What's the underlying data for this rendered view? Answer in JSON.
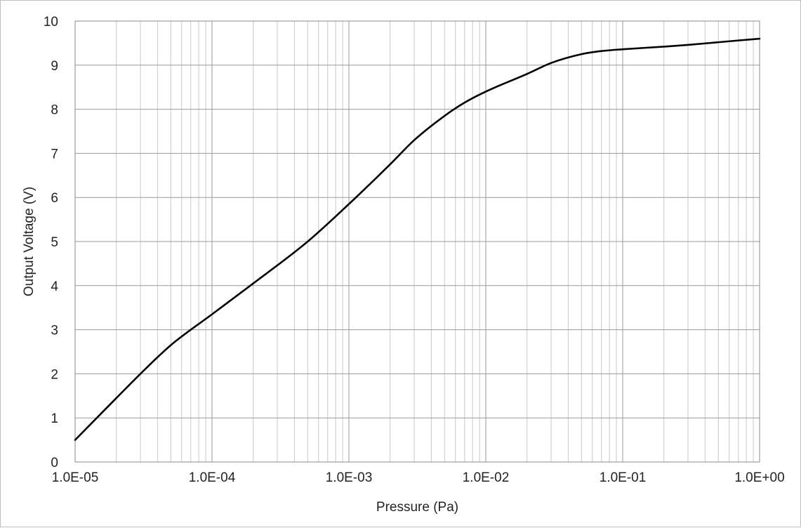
{
  "chart_data": {
    "type": "line",
    "title": "",
    "xlabel": "Pressure (Pa)",
    "ylabel": "Output Voltage (V)",
    "x_scale": "log",
    "xlim": [
      1e-05,
      1
    ],
    "ylim": [
      0,
      10
    ],
    "x_tick_labels": [
      "1.0E-05",
      "1.0E-04",
      "1.0E-03",
      "1.0E-02",
      "1.0E-01",
      "1.0E+00"
    ],
    "y_tick_labels": [
      "0",
      "1",
      "2",
      "3",
      "4",
      "5",
      "6",
      "7",
      "8",
      "9",
      "10"
    ],
    "grid": true,
    "legend": "none",
    "series": [
      {
        "line_color": "#000000",
        "x": [
          1e-05,
          2e-05,
          3e-05,
          5e-05,
          0.0001,
          0.0002,
          0.0005,
          0.001,
          0.002,
          0.003,
          0.005,
          0.007,
          0.01,
          0.02,
          0.03,
          0.05,
          0.07,
          0.1,
          0.2,
          0.3,
          0.5,
          0.7,
          1
        ],
        "y": [
          0.5,
          1.45,
          2.0,
          2.65,
          3.35,
          4.05,
          5.0,
          5.85,
          6.75,
          7.3,
          7.85,
          8.15,
          8.4,
          8.8,
          9.05,
          9.25,
          9.32,
          9.36,
          9.42,
          9.46,
          9.52,
          9.56,
          9.6
        ]
      }
    ]
  }
}
